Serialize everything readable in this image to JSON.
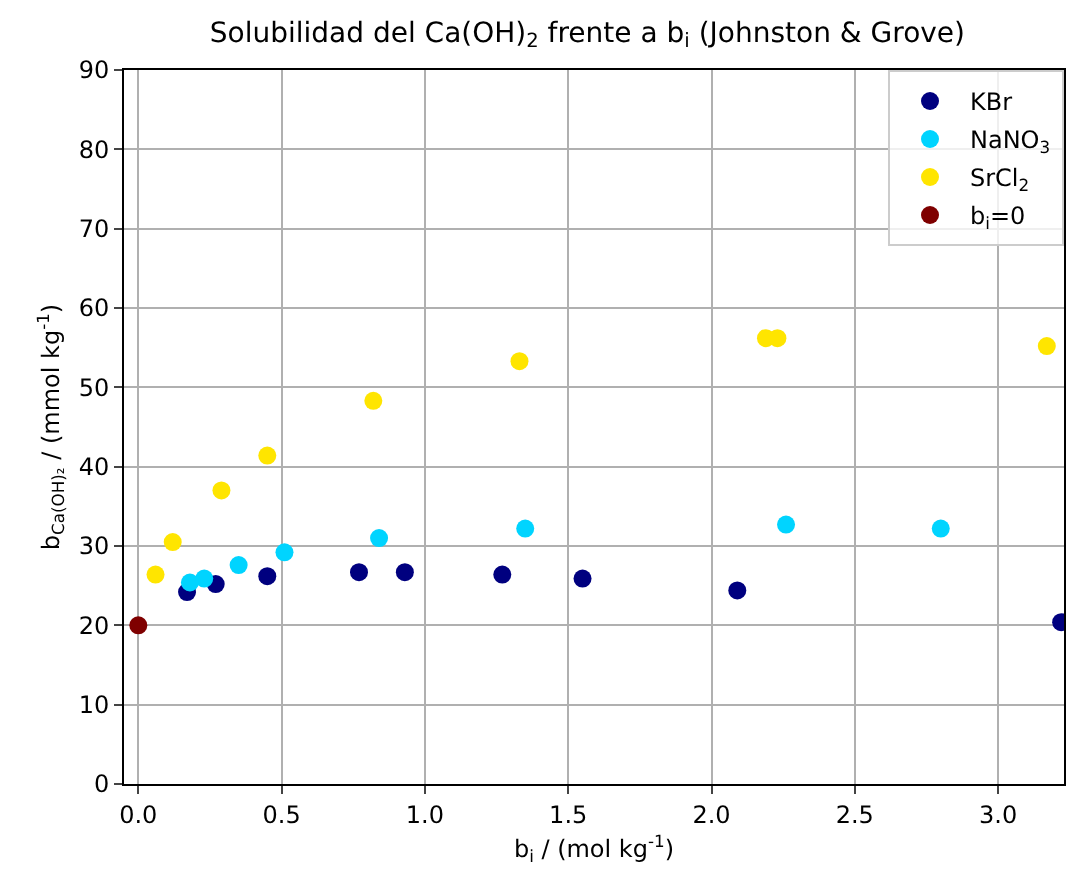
{
  "chart_data": {
    "type": "scatter",
    "title": "Solubilidad del Ca(OH)$_{2}$ frente a b$_{i}$ (Johnston & Grove)",
    "xlabel": "b$_{i}$ / (mol kg$^{-1}$)",
    "ylabel": "b$_{Ca(OH)₂}$ / (mmol kg$^{-1}$)",
    "series": [
      {
        "name": "KBr",
        "color": "#00007f",
        "x": [
          0.17,
          0.27,
          0.45,
          0.77,
          0.93,
          1.27,
          1.55,
          2.09,
          3.22
        ],
        "values": [
          24.2,
          25.2,
          26.2,
          26.7,
          26.7,
          26.4,
          25.9,
          24.4,
          20.4
        ]
      },
      {
        "name": "NaNO$_{3}$",
        "color": "#00d4ff",
        "x": [
          0.18,
          0.23,
          0.35,
          0.51,
          0.84,
          1.35,
          2.26,
          2.8
        ],
        "values": [
          25.4,
          25.9,
          27.6,
          29.2,
          31.0,
          32.2,
          32.7,
          32.2
        ]
      },
      {
        "name": "SrCl$_{2}$",
        "color": "#ffe500",
        "x": [
          0.06,
          0.12,
          0.29,
          0.45,
          0.82,
          1.33,
          2.19,
          2.23,
          3.17
        ],
        "values": [
          26.4,
          30.5,
          37.0,
          41.4,
          48.3,
          53.3,
          56.2,
          56.2,
          55.2
        ]
      },
      {
        "name": "b$_{i}$=0",
        "color": "#7f0000",
        "x": [
          0
        ],
        "values": [
          20
        ]
      }
    ],
    "xlim": [
      -0.05,
      3.23
    ],
    "ylim": [
      0,
      90
    ],
    "xticks": [
      {
        "value": 0,
        "label": "0.0"
      },
      {
        "value": 0.5,
        "label": "0.5"
      },
      {
        "value": 1,
        "label": "1.0"
      },
      {
        "value": 1.5,
        "label": "1.5"
      },
      {
        "value": 2,
        "label": "2.0"
      },
      {
        "value": 2.5,
        "label": "2.5"
      },
      {
        "value": 3,
        "label": "3.0"
      }
    ],
    "yticks": [
      0,
      10,
      20,
      30,
      40,
      50,
      60,
      70,
      80,
      90
    ],
    "grid": true,
    "legend": "top right",
    "marker": "circle"
  }
}
